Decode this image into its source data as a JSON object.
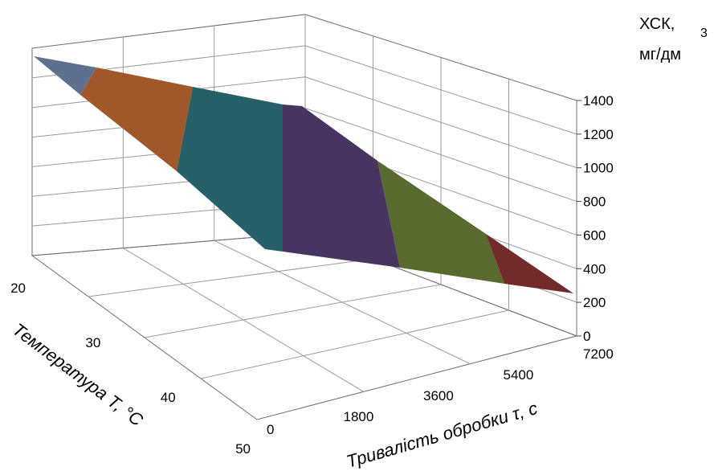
{
  "chart_data": {
    "type": "surface",
    "x_axis": {
      "label": "Тривалість обробки τ, с",
      "ticks": [
        "0",
        "1800",
        "3600",
        "5400",
        "7200"
      ]
    },
    "y_axis": {
      "label": "Температура Т, °С",
      "ticks": [
        "20",
        "30",
        "40",
        "50"
      ]
    },
    "z_axis": {
      "label_line1": "ХСК,",
      "label_sup": "3",
      "label_line2": "мг/дм",
      "ticks": [
        "0",
        "200",
        "400",
        "600",
        "800",
        "1000",
        "1200",
        "1400"
      ],
      "range": [
        0,
        1400
      ]
    },
    "bands": [
      {
        "range": "1200-1400",
        "color": "#5f6f8f"
      },
      {
        "range": "1000-1200",
        "color": "#a0582a"
      },
      {
        "range": "800-1000",
        "color": "#28606a"
      },
      {
        "range": "600-800",
        "color": "#473460"
      },
      {
        "range": "400-600",
        "color": "#586a2e"
      },
      {
        "range": "200-400",
        "color": "#722a2a"
      }
    ]
  }
}
